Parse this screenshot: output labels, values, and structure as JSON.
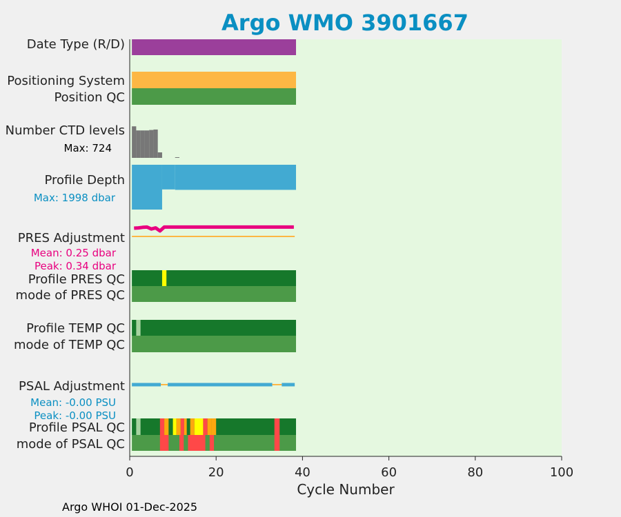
{
  "title": "Argo WMO 3901667",
  "footer": "Argo WHOI 01-Dec-2025",
  "colors": {
    "title": "#0a8fc2",
    "plot_bg": "#e5f8e0",
    "date_type": "#9b3f9b",
    "positioning": "#fdb744",
    "qc_good": "#4c9a48",
    "qc_profile_good": "#16782b",
    "ctd": "#777777",
    "depth": "#42aad2",
    "pres_adj": "#e8007f",
    "pres_ref": "#fdb744",
    "psal_adj": "#42aad2",
    "yellow": "#ffff00",
    "orange": "#fda70f",
    "red": "#ff4848",
    "light": "#a6d3a0"
  },
  "chart_data": {
    "type": "bar",
    "xlabel": "Cycle Number",
    "xlim": [
      0,
      100
    ],
    "xticks": [
      0,
      20,
      40,
      60,
      80,
      100
    ],
    "cycles_range": [
      0.5,
      38.5
    ],
    "rows": {
      "date_type": {
        "label": "Date Type (R/D)"
      },
      "positioning": {
        "label": "Positioning System"
      },
      "position_qc": {
        "label": "Position QC"
      },
      "ctd": {
        "label": "Number CTD levels",
        "annotation": "Max: 724",
        "max": 724,
        "values": [
          {
            "cycle": 1,
            "value": 690
          },
          {
            "cycle": 2,
            "value": 600
          },
          {
            "cycle": 3,
            "value": 600
          },
          {
            "cycle": 4,
            "value": 600
          },
          {
            "cycle": 5,
            "value": 610
          },
          {
            "cycle": 6,
            "value": 620
          },
          {
            "cycle": 7,
            "value": 120
          },
          {
            "cycle": 11,
            "value": 15
          }
        ]
      },
      "depth": {
        "label": "Profile Depth",
        "annotation": "Max: 1998 dbar",
        "max": 1998,
        "values": [
          {
            "from": 0.5,
            "to": 7.5,
            "value": 1998
          },
          {
            "from": 7.5,
            "to": 10.5,
            "value": 1100
          },
          {
            "from": 10.5,
            "to": 38.5,
            "value": 1120
          }
        ]
      },
      "pres_adj": {
        "label": "PRES Adjustment",
        "mean_label": "Mean: 0.25 dbar",
        "peak_label": "Peak: 0.34 dbar",
        "mean": 0.25,
        "peak": 0.34,
        "values": [
          {
            "cycle": 1,
            "value": 0.3
          },
          {
            "cycle": 2,
            "value": 0.31
          },
          {
            "cycle": 3,
            "value": 0.33
          },
          {
            "cycle": 4,
            "value": 0.34
          },
          {
            "cycle": 5,
            "value": 0.27
          },
          {
            "cycle": 6,
            "value": 0.31
          },
          {
            "cycle": 7,
            "value": 0.2
          },
          {
            "cycle": 8,
            "value": 0.34
          },
          {
            "cycle": 38,
            "value": 0.34
          }
        ]
      },
      "profile_pres_qc": {
        "label": "Profile PRES QC",
        "segments": [
          {
            "from": 7.5,
            "to": 8.5,
            "flag": "yellow"
          }
        ]
      },
      "mode_pres_qc": {
        "label": "mode of PRES QC"
      },
      "profile_temp_qc": {
        "label": "Profile TEMP QC",
        "segments": [
          {
            "from": 1.5,
            "to": 2.5,
            "flag": "light"
          }
        ]
      },
      "mode_temp_qc": {
        "label": "mode of TEMP QC"
      },
      "psal_adj": {
        "label": "PSAL Adjustment",
        "mean_label": "Mean: -0.00 PSU",
        "peak_label": "Peak: -0.00 PSU",
        "segments": [
          {
            "from": 0.5,
            "to": 7.2,
            "color": "psal_adj"
          },
          {
            "from": 7.2,
            "to": 8.8,
            "color": "pres_ref"
          },
          {
            "from": 8.8,
            "to": 33.0,
            "color": "psal_adj"
          },
          {
            "from": 33.0,
            "to": 35.2,
            "color": "pres_ref"
          },
          {
            "from": 35.2,
            "to": 38.2,
            "color": "psal_adj"
          }
        ]
      },
      "profile_psal_qc": {
        "label": "Profile PSAL QC",
        "segments": [
          {
            "from": 1.5,
            "to": 2.5,
            "flag": "light"
          },
          {
            "from": 7.0,
            "to": 8.0,
            "flag": "red"
          },
          {
            "from": 8.0,
            "to": 9.0,
            "flag": "orange"
          },
          {
            "from": 10.0,
            "to": 10.8,
            "flag": "yellow"
          },
          {
            "from": 10.8,
            "to": 11.8,
            "flag": "orange"
          },
          {
            "from": 11.8,
            "to": 12.6,
            "flag": "red"
          },
          {
            "from": 12.6,
            "to": 13.2,
            "flag": "orange"
          },
          {
            "from": 14.0,
            "to": 15.0,
            "flag": "orange"
          },
          {
            "from": 15.0,
            "to": 17.0,
            "flag": "yellow"
          },
          {
            "from": 17.0,
            "to": 18.0,
            "flag": "red"
          },
          {
            "from": 18.0,
            "to": 19.0,
            "flag": "orange"
          },
          {
            "from": 19.0,
            "to": 20.0,
            "flag": "orange"
          },
          {
            "from": 33.5,
            "to": 34.7,
            "flag": "red"
          }
        ]
      },
      "mode_psal_qc": {
        "label": "mode of PSAL QC",
        "segments": [
          {
            "from": 7.0,
            "to": 9.0,
            "flag": "red"
          },
          {
            "from": 11.5,
            "to": 12.5,
            "flag": "red"
          },
          {
            "from": 13.5,
            "to": 17.5,
            "flag": "red"
          },
          {
            "from": 18.5,
            "to": 19.5,
            "flag": "red"
          },
          {
            "from": 33.5,
            "to": 34.7,
            "flag": "red"
          }
        ]
      }
    }
  }
}
